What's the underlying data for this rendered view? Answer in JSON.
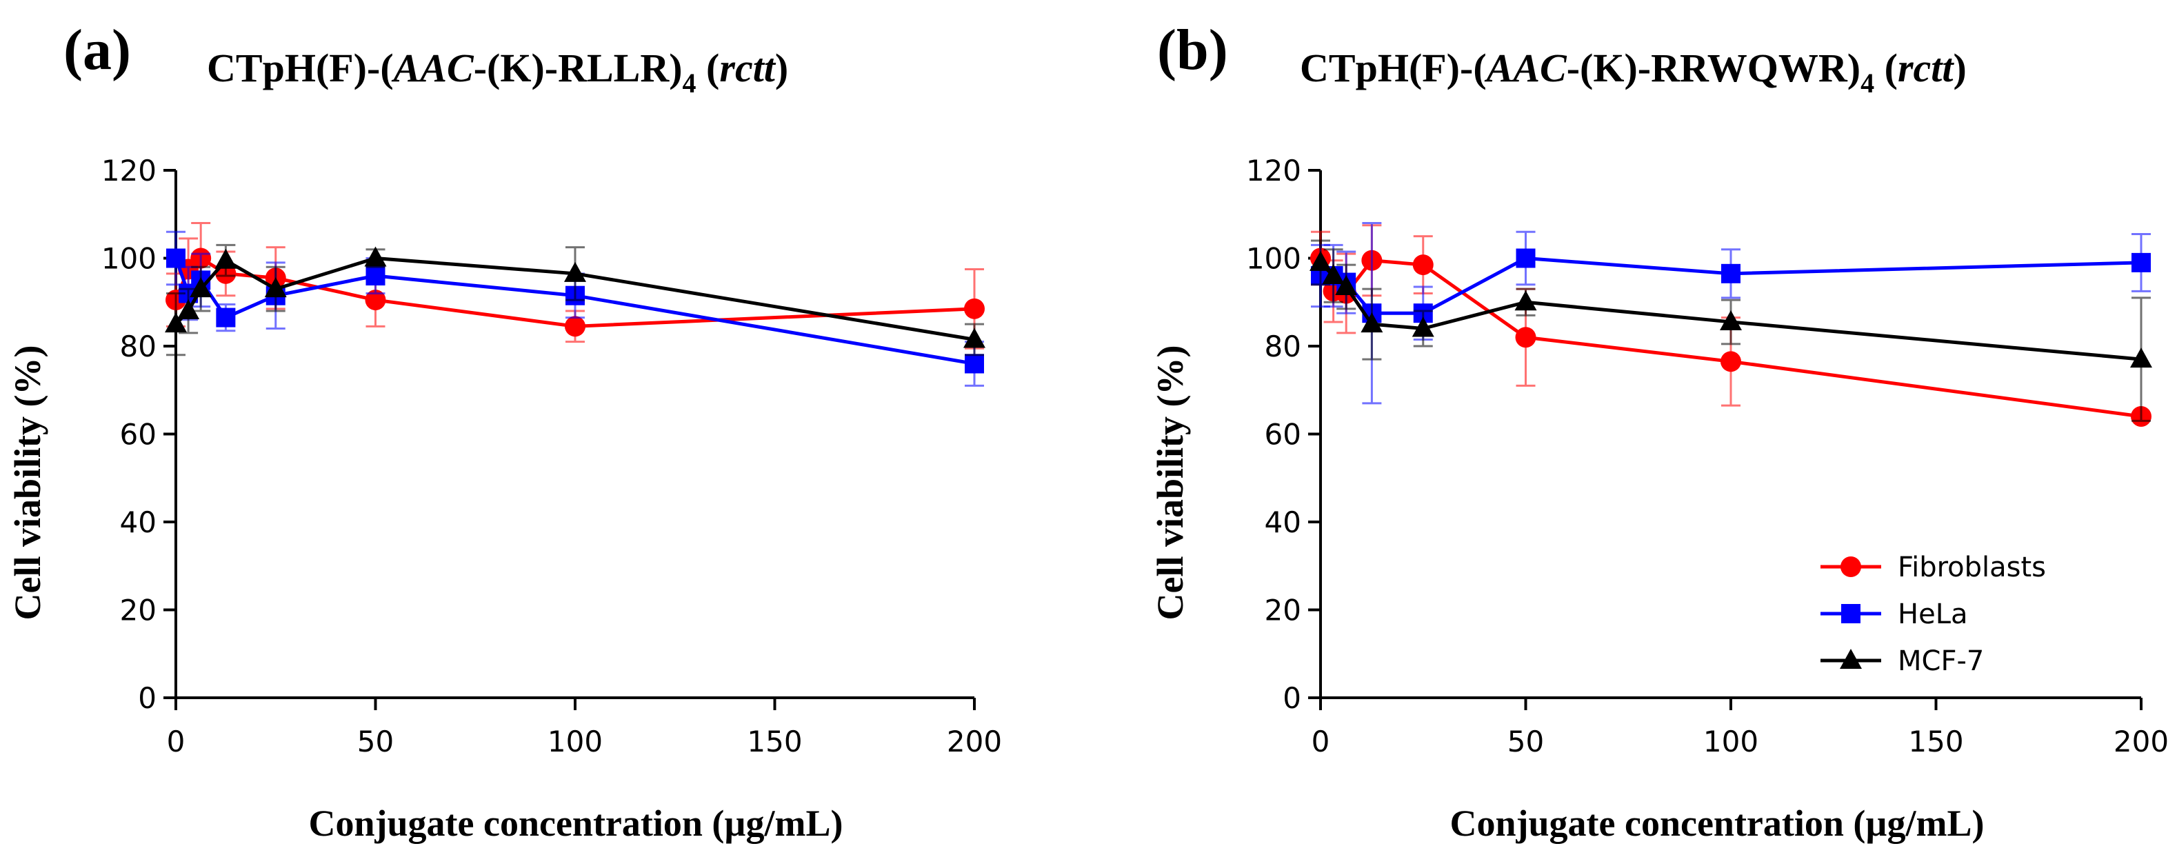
{
  "chart_data": [
    {
      "type": "line",
      "panel_label": "(a)",
      "title": {
        "prefix": "CTpH(F)-(",
        "italic": "AAC",
        "middle": "-(K)-RLLR)",
        "subscript": "4",
        "suffix_open": " (",
        "suffix_italic": "rctt",
        "suffix_close": ")"
      },
      "xlabel": "Conjugate concentration (µg/mL)",
      "ylabel": "Cell viability (%)",
      "xlim": [
        0,
        200
      ],
      "ylim": [
        0,
        120
      ],
      "xticks": [
        0,
        50,
        100,
        150,
        200
      ],
      "yticks": [
        0,
        20,
        40,
        60,
        80,
        100,
        120
      ],
      "x": [
        0,
        3.125,
        6.25,
        12.5,
        25,
        50,
        100,
        200
      ],
      "legend": false,
      "series": [
        {
          "name": "Fibroblasts",
          "color": "#ff0000",
          "marker": "circle",
          "x": [
            0,
            3.125,
            6.25,
            12.5,
            25,
            50,
            100,
            200
          ],
          "values": [
            90.5,
            97.5,
            100,
            96.5,
            95.5,
            90.5,
            84.5,
            88.5
          ],
          "err": [
            6,
            7,
            8,
            5,
            7,
            6,
            3.5,
            9
          ]
        },
        {
          "name": "HeLa",
          "color": "#0000ff",
          "marker": "square",
          "x": [
            0,
            3.125,
            6.25,
            12.5,
            25,
            50,
            100,
            200
          ],
          "values": [
            100,
            92,
            95,
            86.5,
            91.5,
            96,
            91.5,
            76
          ],
          "err": [
            6,
            6,
            6,
            3,
            7.5,
            4,
            5,
            5
          ]
        },
        {
          "name": "MCF-7",
          "color": "#000000",
          "marker": "triangle",
          "x": [
            0,
            3.125,
            6.25,
            12.5,
            25,
            50,
            100,
            200
          ],
          "values": [
            85,
            88,
            93,
            99.5,
            93,
            100,
            96.5,
            81.5
          ],
          "err": [
            7,
            5,
            5,
            3.5,
            5,
            2,
            6,
            3.5
          ]
        }
      ]
    },
    {
      "type": "line",
      "panel_label": "(b)",
      "title": {
        "prefix": "CTpH(F)-(",
        "italic": "AAC",
        "middle": "-(K)-RRWQWR)",
        "subscript": "4",
        "suffix_open": " (",
        "suffix_italic": "rctt",
        "suffix_close": ")"
      },
      "xlabel": "Conjugate concentration (µg/mL)",
      "ylabel": "Cell viability (%)",
      "xlim": [
        0,
        200
      ],
      "ylim": [
        0,
        120
      ],
      "xticks": [
        0,
        50,
        100,
        150,
        200
      ],
      "yticks": [
        0,
        20,
        40,
        60,
        80,
        100,
        120
      ],
      "x": [
        0,
        3.125,
        6.25,
        12.5,
        25,
        50,
        100,
        200
      ],
      "legend": true,
      "series": [
        {
          "name": "Fibroblasts",
          "color": "#ff0000",
          "marker": "circle",
          "x": [
            0,
            3.125,
            6.25,
            12.5,
            25,
            50,
            100,
            200
          ],
          "values": [
            100,
            92.5,
            92,
            99.5,
            98.5,
            82,
            76.5,
            64
          ],
          "err": [
            6,
            7,
            9,
            8,
            6.5,
            11,
            10,
            0
          ]
        },
        {
          "name": "HeLa",
          "color": "#0000ff",
          "marker": "square",
          "x": [
            0,
            3.125,
            6.25,
            12.5,
            25,
            50,
            100,
            200
          ],
          "values": [
            96,
            96,
            94.5,
            87.5,
            87.5,
            100,
            96.5,
            99
          ],
          "err": [
            7,
            7,
            7,
            20.5,
            6,
            6,
            5.5,
            6.5
          ]
        },
        {
          "name": "MCF-7",
          "color": "#000000",
          "marker": "triangle",
          "x": [
            0,
            3.125,
            6.25,
            12.5,
            25,
            50,
            100,
            200
          ],
          "values": [
            99,
            96,
            93.5,
            85,
            84,
            90,
            85.5,
            77
          ],
          "err": [
            5,
            6,
            5,
            8,
            4,
            3,
            5,
            14
          ]
        }
      ]
    }
  ]
}
